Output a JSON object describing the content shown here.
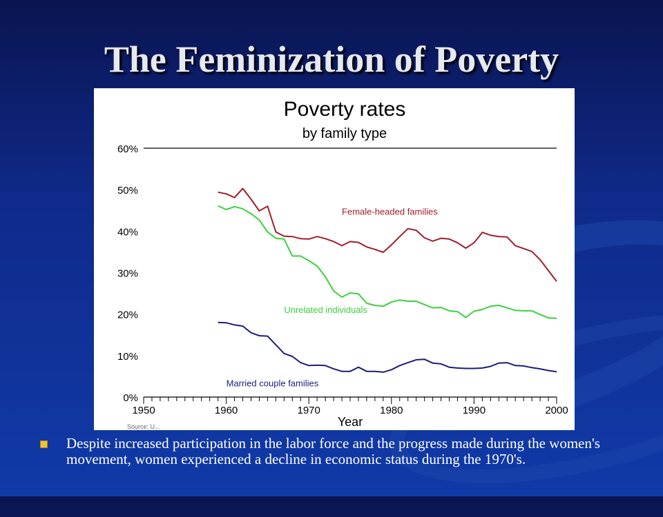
{
  "slide": {
    "title": "The Feminization of Poverty",
    "bullet": "Despite increased participation in the labor force and the progress made during the women's movement, women experienced a decline in economic status during the 1970's."
  },
  "colors": {
    "background": "#0f2a8a",
    "female_headed": "#a01c2a",
    "unrelated": "#3ad23a",
    "married": "#1c1c7a",
    "bullet": "#f1c232"
  },
  "chart_data": {
    "type": "line",
    "title": "Poverty rates",
    "subtitle": "by family type",
    "xlabel": "Year",
    "ylabel": "",
    "xlim": [
      1950,
      2000
    ],
    "ylim": [
      0,
      60
    ],
    "x_ticks": [
      "1950",
      "1960",
      "1970",
      "1980",
      "1990",
      "2000"
    ],
    "y_ticks": [
      "0%",
      "10%",
      "20%",
      "30%",
      "40%",
      "50%",
      "60%"
    ],
    "source_note": "Source: U...",
    "series": [
      {
        "name": "Female-headed families",
        "color": "#a01c2a",
        "x": [
          1959,
          1960,
          1961,
          1962,
          1963,
          1964,
          1965,
          1966,
          1967,
          1968,
          1969,
          1970,
          1971,
          1972,
          1973,
          1974,
          1975,
          1976,
          1977,
          1978,
          1979,
          1980,
          1981,
          1982,
          1983,
          1984,
          1985,
          1986,
          1987,
          1988,
          1989,
          1990,
          1991,
          1992,
          1993,
          1994,
          1995,
          1996,
          1997,
          1998,
          1999,
          2000
        ],
        "y": [
          49.4,
          49.0,
          48.1,
          50.3,
          47.7,
          44.9,
          46.0,
          39.8,
          38.8,
          38.7,
          38.2,
          38.1,
          38.7,
          38.2,
          37.5,
          36.5,
          37.5,
          37.3,
          36.2,
          35.6,
          34.9,
          36.7,
          38.7,
          40.6,
          40.2,
          38.4,
          37.6,
          38.3,
          38.1,
          37.2,
          35.9,
          37.2,
          39.7,
          39.0,
          38.7,
          38.6,
          36.5,
          35.8,
          35.1,
          33.1,
          30.5,
          27.9
        ]
      },
      {
        "name": "Unrelated individuals",
        "color": "#3ad23a",
        "x": [
          1959,
          1960,
          1961,
          1962,
          1963,
          1964,
          1965,
          1966,
          1967,
          1968,
          1969,
          1970,
          1971,
          1972,
          1973,
          1974,
          1975,
          1976,
          1977,
          1978,
          1979,
          1980,
          1981,
          1982,
          1983,
          1984,
          1985,
          1986,
          1987,
          1988,
          1989,
          1990,
          1991,
          1992,
          1993,
          1994,
          1995,
          1996,
          1997,
          1998,
          1999,
          2000
        ],
        "y": [
          46.1,
          45.2,
          45.9,
          45.4,
          44.2,
          42.7,
          39.8,
          38.3,
          38.1,
          34.0,
          34.0,
          32.9,
          31.6,
          29.0,
          25.6,
          24.1,
          25.1,
          24.9,
          22.6,
          22.1,
          21.9,
          22.9,
          23.4,
          23.1,
          23.1,
          22.3,
          21.5,
          21.6,
          20.8,
          20.6,
          19.2,
          20.7,
          21.1,
          21.9,
          22.1,
          21.5,
          20.9,
          20.8,
          20.8,
          19.9,
          19.1,
          19.0
        ]
      },
      {
        "name": "Married couple families",
        "color": "#1c1c7a",
        "x": [
          1959,
          1960,
          1961,
          1962,
          1963,
          1964,
          1965,
          1966,
          1967,
          1968,
          1969,
          1970,
          1971,
          1972,
          1973,
          1974,
          1975,
          1976,
          1977,
          1978,
          1979,
          1980,
          1981,
          1982,
          1983,
          1984,
          1985,
          1986,
          1987,
          1988,
          1989,
          1990,
          1991,
          1992,
          1993,
          1994,
          1995,
          1996,
          1997,
          1998,
          1999,
          2000
        ],
        "y": [
          18.0,
          17.9,
          17.4,
          17.1,
          15.5,
          14.8,
          14.7,
          12.6,
          10.5,
          9.8,
          8.3,
          7.6,
          7.7,
          7.6,
          6.8,
          6.2,
          6.2,
          7.2,
          6.2,
          6.2,
          6.0,
          6.6,
          7.6,
          8.3,
          9.0,
          9.1,
          8.2,
          8.0,
          7.2,
          7.0,
          6.9,
          6.9,
          7.0,
          7.4,
          8.2,
          8.3,
          7.6,
          7.5,
          7.1,
          6.8,
          6.4,
          6.1
        ]
      }
    ],
    "series_labels": [
      {
        "text": "Female-headed families",
        "color": "#a01c2a",
        "x": 1974,
        "y": 44.0
      },
      {
        "text": "Unrelated individuals",
        "color": "#3ad23a",
        "x": 1967,
        "y": 20.3
      },
      {
        "text": "Married couple families",
        "color": "#1c1c7a",
        "x": 1960,
        "y": 2.6
      }
    ]
  }
}
